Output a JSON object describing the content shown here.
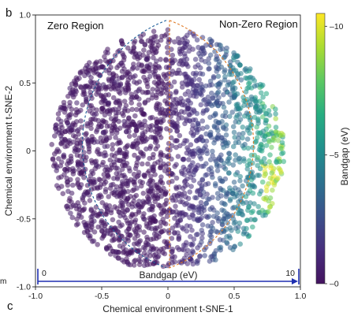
{
  "panel_letters": {
    "top": "b",
    "bottom": "c",
    "stray": "m"
  },
  "chart_data": {
    "type": "scatter",
    "title": "",
    "xlabel": "Chemical environment t-SNE-1",
    "ylabel": "Chemical environment t-SNE-2",
    "xlim": [
      -1.0,
      1.0
    ],
    "ylim": [
      -1.0,
      1.0
    ],
    "xticks": [
      -1.0,
      -0.5,
      0,
      0.5,
      1.0
    ],
    "xtick_labels": [
      "-1.0",
      "-0.5",
      "0",
      "0.5",
      "1.0"
    ],
    "yticks": [
      -1.0,
      -0.5,
      0,
      0.5,
      1.0
    ],
    "ytick_labels": [
      "-1.0",
      "-0.5",
      "0",
      "0.5",
      "1.0"
    ],
    "grid": false,
    "color_variable": "Bandgap (eV)",
    "colorbar": {
      "label": "Bandgap (eV)",
      "range": [
        0,
        10.5
      ],
      "ticks": [
        0,
        5,
        10
      ],
      "tick_labels": [
        "0",
        "5",
        "10"
      ],
      "colormap": [
        "#44135f",
        "#472f7d",
        "#3b518b",
        "#2c718e",
        "#21908d",
        "#27ad81",
        "#5cc863",
        "#aadc32",
        "#fde725"
      ]
    },
    "regions": [
      {
        "label": "Zero Region",
        "shape": "left half circle",
        "stroke": "#1f5f99"
      },
      {
        "label": "Non-Zero Region",
        "shape": "right half circle",
        "stroke": "#e07b28"
      }
    ],
    "bandgap_arrow": {
      "label": "Bandgap (eV)",
      "start_label": "0",
      "end_label": "10",
      "color": "#1f2fb0"
    },
    "clusters": [
      {
        "x_range": [
          -0.95,
          0.0
        ],
        "y_range": [
          -0.85,
          0.95
        ],
        "bandgap_range": [
          0,
          0.8
        ],
        "approx_count": 1300
      },
      {
        "x_range": [
          0.0,
          0.9
        ],
        "y_range": [
          -0.85,
          0.95
        ],
        "bandgap_range": [
          0.5,
          10.5
        ],
        "approx_count": 1100
      }
    ]
  }
}
